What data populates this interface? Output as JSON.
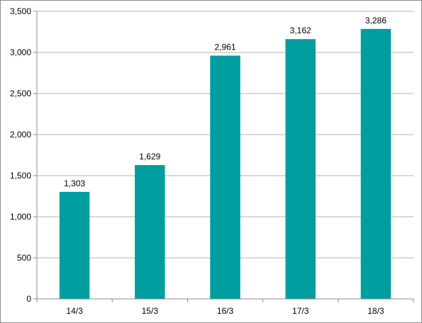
{
  "chart_data": {
    "type": "bar",
    "categories": [
      "14/3",
      "15/3",
      "16/3",
      "17/3",
      "18/3"
    ],
    "values": [
      1303,
      1629,
      2961,
      3162,
      3286
    ],
    "value_labels": [
      "1,303",
      "1,629",
      "2,961",
      "3,162",
      "3,286"
    ],
    "y_ticks": [
      "0",
      "500",
      "1,000",
      "1,500",
      "2,000",
      "2,500",
      "3,000",
      "3,500"
    ],
    "ylim": [
      0,
      3500
    ],
    "y_step": 500,
    "grid": true,
    "legend": "none",
    "bar_color": "#009e9e",
    "grid_color": "#b3b3b3",
    "axis_color": "#8c8c8c"
  }
}
